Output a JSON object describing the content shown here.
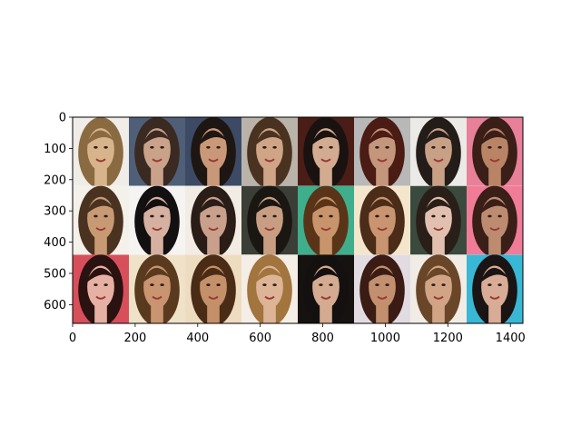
{
  "figure": {
    "background": "#ffffff",
    "axes_spine_color": "#000000"
  },
  "image_grid": {
    "rows": 3,
    "cols": 8,
    "description_kind": "grid of 24 face portrait thumbnails",
    "tiles": [
      {
        "bg": "#f0ede8",
        "skin": "#d8b48c",
        "hair": "#8a6a40"
      },
      {
        "bg": "#4f5f78",
        "skin": "#caa28a",
        "hair": "#3a2a22"
      },
      {
        "bg": "#3c4a66",
        "skin": "#c99878",
        "hair": "#1e1612"
      },
      {
        "bg": "#b9b3aa",
        "skin": "#d0a486",
        "hair": "#4a3220"
      },
      {
        "bg": "#4a1e16",
        "skin": "#d3ab90",
        "hair": "#1a1210"
      },
      {
        "bg": "#b8b8b8",
        "skin": "#c4967c",
        "hair": "#4a1c14"
      },
      {
        "bg": "#eceae6",
        "skin": "#c8a086",
        "hair": "#241c18"
      },
      {
        "bg": "#e8809a",
        "skin": "#b98466",
        "hair": "#3a1e18"
      },
      {
        "bg": "#f4f0ea",
        "skin": "#c89a74",
        "hair": "#4a3220"
      },
      {
        "bg": "#f6f4f2",
        "skin": "#d6b0a0",
        "hair": "#121010"
      },
      {
        "bg": "#f2ece4",
        "skin": "#c8a08c",
        "hair": "#2a1c16"
      },
      {
        "bg": "#3a3e36",
        "skin": "#c89e82",
        "hair": "#1a1612"
      },
      {
        "bg": "#3fae8c",
        "skin": "#c8946c",
        "hair": "#5a3418"
      },
      {
        "bg": "#f4e6cc",
        "skin": "#c99470",
        "hair": "#4a2c18"
      },
      {
        "bg": "#3a4a3e",
        "skin": "#e2c0b0",
        "hair": "#2a1e18"
      },
      {
        "bg": "#f07c98",
        "skin": "#bd8c70",
        "hair": "#3a1e18"
      },
      {
        "bg": "#d84f5c",
        "skin": "#e6b0a4",
        "hair": "#2a1210"
      },
      {
        "bg": "#efe2c8",
        "skin": "#c99470",
        "hair": "#5a3a1e"
      },
      {
        "bg": "#eedcc0",
        "skin": "#c4906a",
        "hair": "#4a2c16"
      },
      {
        "bg": "#f4eee6",
        "skin": "#ddb496",
        "hair": "#a2743e"
      },
      {
        "bg": "#161210",
        "skin": "#d4aa90",
        "hair": "#141010"
      },
      {
        "bg": "#e2dce2",
        "skin": "#c2906e",
        "hair": "#3a1c14"
      },
      {
        "bg": "#f2ece6",
        "skin": "#d2a486",
        "hair": "#6a4628"
      },
      {
        "bg": "#38b8d4",
        "skin": "#d8ac96",
        "hair": "#1a1414"
      }
    ]
  },
  "axes": {
    "x_range": [
      0,
      1440
    ],
    "y_range": [
      0,
      660
    ],
    "x_ticks": [
      {
        "value": 0,
        "label": "0"
      },
      {
        "value": 200,
        "label": "200"
      },
      {
        "value": 400,
        "label": "400"
      },
      {
        "value": 600,
        "label": "600"
      },
      {
        "value": 800,
        "label": "800"
      },
      {
        "value": 1000,
        "label": "1000"
      },
      {
        "value": 1200,
        "label": "1200"
      },
      {
        "value": 1400,
        "label": "1400"
      }
    ],
    "y_ticks": [
      {
        "value": 0,
        "label": "0"
      },
      {
        "value": 100,
        "label": "100"
      },
      {
        "value": 200,
        "label": "200"
      },
      {
        "value": 300,
        "label": "300"
      },
      {
        "value": 400,
        "label": "400"
      },
      {
        "value": 500,
        "label": "500"
      },
      {
        "value": 600,
        "label": "600"
      }
    ]
  }
}
